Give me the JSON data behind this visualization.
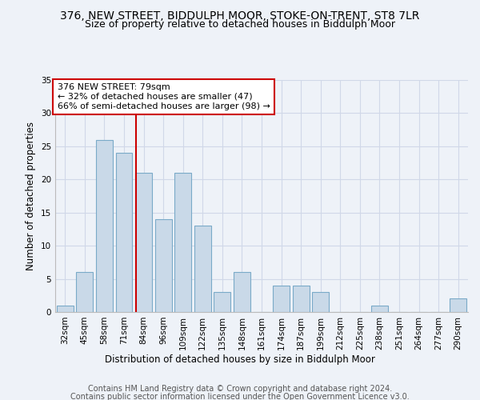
{
  "title": "376, NEW STREET, BIDDULPH MOOR, STOKE-ON-TRENT, ST8 7LR",
  "subtitle": "Size of property relative to detached houses in Biddulph Moor",
  "xlabel": "Distribution of detached houses by size in Biddulph Moor",
  "ylabel": "Number of detached properties",
  "categories": [
    "32sqm",
    "45sqm",
    "58sqm",
    "71sqm",
    "84sqm",
    "96sqm",
    "109sqm",
    "122sqm",
    "135sqm",
    "148sqm",
    "161sqm",
    "174sqm",
    "187sqm",
    "199sqm",
    "212sqm",
    "225sqm",
    "238sqm",
    "251sqm",
    "264sqm",
    "277sqm",
    "290sqm"
  ],
  "values": [
    1,
    6,
    26,
    24,
    21,
    14,
    21,
    13,
    3,
    6,
    0,
    4,
    4,
    3,
    0,
    0,
    1,
    0,
    0,
    0,
    2
  ],
  "bar_color": "#c9d9e8",
  "bar_edge_color": "#7aaac8",
  "grid_color": "#d0d8e8",
  "background_color": "#eef2f8",
  "subject_line_label": "376 NEW STREET: 79sqm",
  "annotation_line1": "← 32% of detached houses are smaller (47)",
  "annotation_line2": "66% of semi-detached houses are larger (98) →",
  "annotation_box_color": "#ffffff",
  "annotation_box_edge": "#cc0000",
  "subject_line_color": "#cc0000",
  "ylim": [
    0,
    35
  ],
  "yticks": [
    0,
    5,
    10,
    15,
    20,
    25,
    30,
    35
  ],
  "footer1": "Contains HM Land Registry data © Crown copyright and database right 2024.",
  "footer2": "Contains public sector information licensed under the Open Government Licence v3.0.",
  "title_fontsize": 10,
  "subtitle_fontsize": 9,
  "axis_label_fontsize": 8.5,
  "tick_fontsize": 7.5,
  "annotation_fontsize": 8,
  "footer_fontsize": 7
}
